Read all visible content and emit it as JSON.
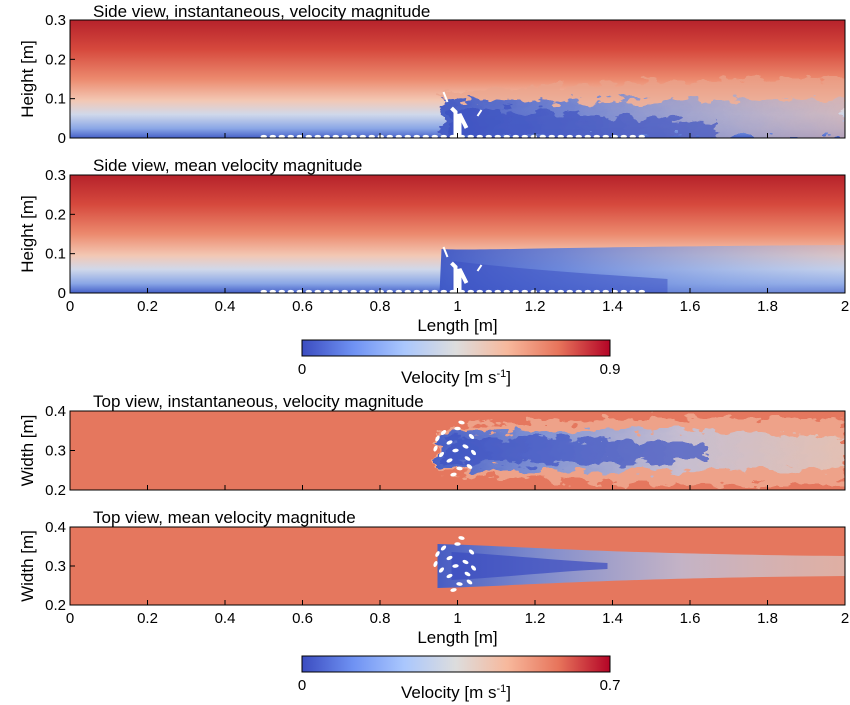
{
  "chart_data": [
    {
      "type": "heatmap",
      "title": "Side view, instantaneous, velocity magnitude",
      "xlabel": "",
      "ylabel": "Height [m]",
      "xlim": [
        0,
        2
      ],
      "ylim": [
        0,
        0.3
      ],
      "yticks": [
        "0",
        "0.1",
        "0.2",
        "0.3"
      ],
      "field": "instantaneous",
      "view": "side",
      "colorbar": 0
    },
    {
      "type": "heatmap",
      "title": "Side view, mean velocity magnitude",
      "xlabel": "Length [m]",
      "ylabel": "Height [m]",
      "xlim": [
        0,
        2
      ],
      "ylim": [
        0,
        0.3
      ],
      "xticks": [
        "0",
        "0.2",
        "0.4",
        "0.6",
        "0.8",
        "1",
        "1.2",
        "1.4",
        "1.6",
        "1.8",
        "2"
      ],
      "yticks": [
        "0",
        "0.1",
        "0.2",
        "0.3"
      ],
      "field": "mean",
      "view": "side",
      "colorbar": 0
    },
    {
      "type": "heatmap",
      "title": "Top view, instantaneous, velocity magnitude",
      "xlabel": "",
      "ylabel": "Width [m]",
      "xlim": [
        0,
        2
      ],
      "ylim": [
        0.2,
        0.4
      ],
      "yticks": [
        "0.2",
        "0.3",
        "0.4"
      ],
      "field": "instantaneous",
      "view": "top",
      "colorbar": 1
    },
    {
      "type": "heatmap",
      "title": "Top view, mean velocity magnitude",
      "xlabel": "Length [m]",
      "ylabel": "Width [m]",
      "xlim": [
        0,
        2
      ],
      "ylim": [
        0.2,
        0.4
      ],
      "xticks": [
        "0",
        "0.2",
        "0.4",
        "0.6",
        "0.8",
        "1",
        "1.2",
        "1.4",
        "1.6",
        "1.8",
        "2"
      ],
      "yticks": [
        "0.2",
        "0.3",
        "0.4"
      ],
      "field": "mean",
      "view": "top",
      "colorbar": 1
    }
  ],
  "colorbars": [
    {
      "min_label": "0",
      "max_label": "0.9",
      "label": "Velocity [m s",
      "label_sup": "-1",
      "label_close": "]",
      "vmin": 0,
      "vmax": 0.9
    },
    {
      "min_label": "0",
      "max_label": "0.7",
      "label": "Velocity [m s",
      "label_sup": "-1",
      "label_close": "]",
      "vmin": 0,
      "vmax": 0.7
    }
  ],
  "colormap": [
    "#3b4cc0",
    "#6f92f3",
    "#aac7fd",
    "#dddddd",
    "#f7b89c",
    "#e7745b",
    "#b40426"
  ]
}
